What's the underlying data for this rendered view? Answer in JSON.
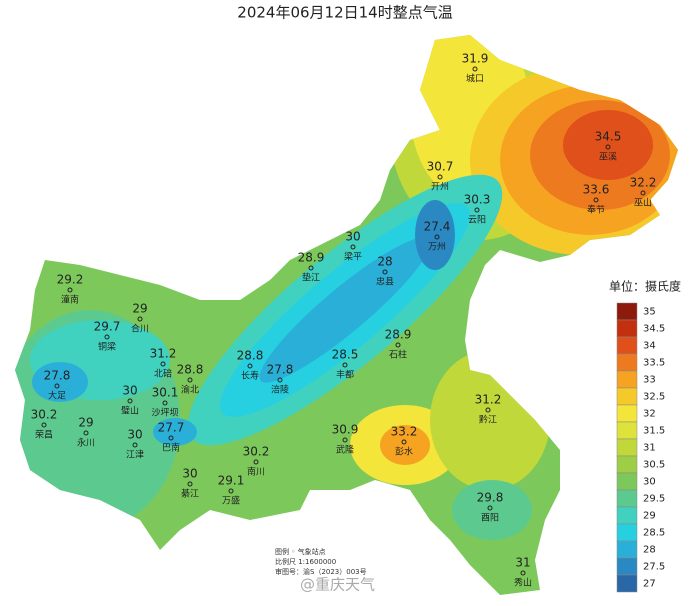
{
  "title": "2024年06月12日14时整点气温",
  "stations": [
    {
      "name": "城口",
      "value": 31.9
    },
    {
      "name": "巫溪",
      "value": 34.5
    },
    {
      "name": "奉节",
      "value": 33.6
    },
    {
      "name": "巫山",
      "value": 32.2
    },
    {
      "name": "开州",
      "value": 30.7
    },
    {
      "name": "云阳",
      "value": 30.3
    },
    {
      "name": "万州",
      "value": 27.4
    },
    {
      "name": "梁平",
      "value": 30
    },
    {
      "name": "垫江",
      "value": 28.9
    },
    {
      "name": "忠县",
      "value": 28
    },
    {
      "name": "石柱",
      "value": 28.9
    },
    {
      "name": "潼南",
      "value": 29.2
    },
    {
      "name": "合川",
      "value": 29
    },
    {
      "name": "铜梁",
      "value": 29.7
    },
    {
      "name": "北碚",
      "value": 31.2
    },
    {
      "name": "渝北",
      "value": 28.8
    },
    {
      "name": "长寿",
      "value": 28.8
    },
    {
      "name": "涪陵",
      "value": 27.8
    },
    {
      "name": "丰都",
      "value": 28.5
    },
    {
      "name": "大足",
      "value": 27.8
    },
    {
      "name": "璧山",
      "value": 30
    },
    {
      "name": "沙坪坝",
      "value": 30.1
    },
    {
      "name": "荣昌",
      "value": 30.2
    },
    {
      "name": "永川",
      "value": 29
    },
    {
      "name": "江津",
      "value": 30
    },
    {
      "name": "巴南",
      "value": 27.7
    },
    {
      "name": "南川",
      "value": 30.2
    },
    {
      "name": "武隆",
      "value": 30.9
    },
    {
      "name": "彭水",
      "value": 33.2
    },
    {
      "name": "黔江",
      "value": 31.2
    },
    {
      "name": "綦江",
      "value": 30
    },
    {
      "name": "万盛",
      "value": 29.1
    },
    {
      "name": "酉阳",
      "value": 29.8
    },
    {
      "name": "秀山",
      "value": 31
    }
  ],
  "legend": {
    "unit": "单位：摄氏度",
    "items": [
      {
        "value": 35,
        "color": "#8e1a0c"
      },
      {
        "value": 34.5,
        "color": "#c2300f"
      },
      {
        "value": 34,
        "color": "#e0501a"
      },
      {
        "value": 33.5,
        "color": "#ee7a20"
      },
      {
        "value": 33,
        "color": "#f5a321"
      },
      {
        "value": 32.5,
        "color": "#f6c92b"
      },
      {
        "value": 32,
        "color": "#f4e53b"
      },
      {
        "value": 31.5,
        "color": "#dde23c"
      },
      {
        "value": 31,
        "color": "#c1d83b"
      },
      {
        "value": 30.5,
        "color": "#9ecd46"
      },
      {
        "value": 30,
        "color": "#7dc85b"
      },
      {
        "value": 29.5,
        "color": "#5cca8f"
      },
      {
        "value": 29,
        "color": "#40d1bf"
      },
      {
        "value": 28.5,
        "color": "#27d0e0"
      },
      {
        "value": 28,
        "color": "#2ab0d8"
      },
      {
        "value": 27.5,
        "color": "#2a88c2"
      },
      {
        "value": 27,
        "color": "#2a67a6"
      }
    ]
  },
  "notes": [
    "图例  ◦  气象站点",
    "比例尺  1:1600000",
    "审图号：渝S（2023）003号"
  ],
  "watermark": "@重庆天气"
}
